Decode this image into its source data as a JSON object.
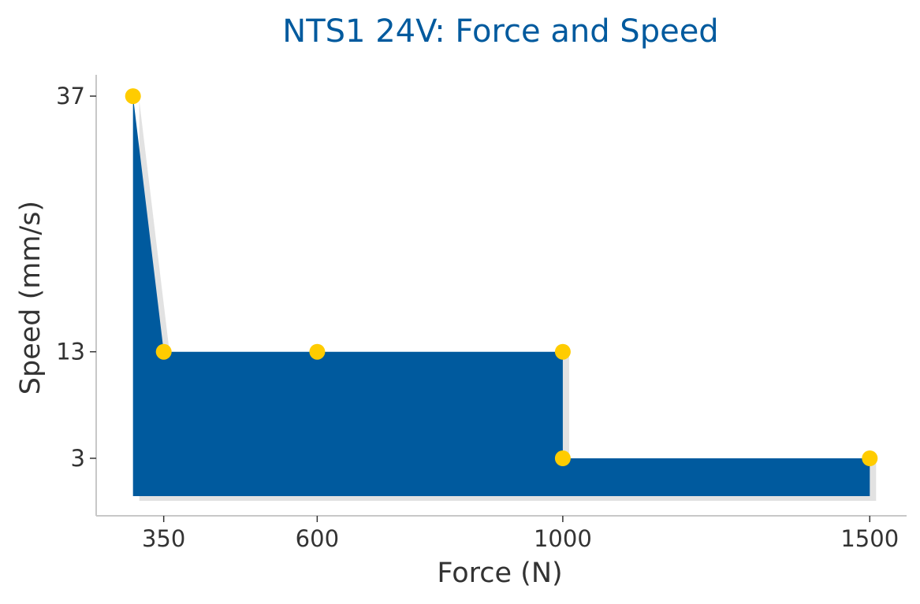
{
  "chart_data": {
    "type": "area",
    "title": "NTS1 24V: Force and Speed",
    "xlabel": "Force (N)",
    "ylabel": "Speed (mm/s)",
    "x_ticks": [
      350,
      600,
      1000,
      1500
    ],
    "y_ticks": [
      3,
      13,
      37
    ],
    "xlim": [
      240,
      1560
    ],
    "ylim": [
      -2.4,
      39
    ],
    "grid": false,
    "legend": "none",
    "series": [
      {
        "x": [
          300,
          350,
          600,
          1000,
          1000,
          1500
        ],
        "y": [
          37,
          13,
          13,
          13,
          3,
          3
        ]
      }
    ],
    "colors": {
      "title": "#005a9e",
      "fill": "#005a9e",
      "shadow": "#e2e2e2",
      "marker": "#ffcc00",
      "axis": "#c8c8c8",
      "text": "#333333"
    }
  }
}
